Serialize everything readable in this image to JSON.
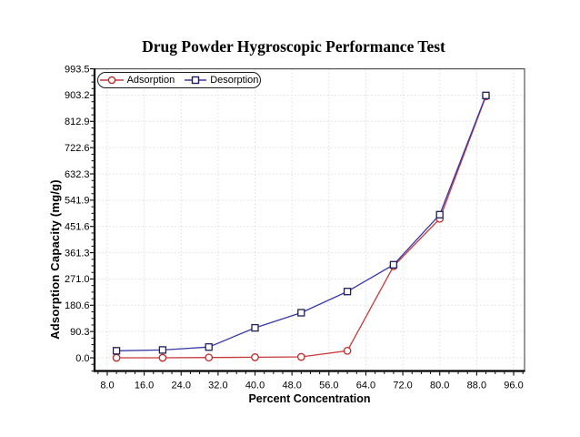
{
  "page": {
    "background": "#ffffff"
  },
  "chart_data": {
    "type": "line",
    "title": "Drug Powder Hygroscopic Performance Test",
    "xlabel": "Percent Concentration",
    "ylabel": "Adsorption Capacity (mg/g)",
    "legend_position": "top-left-inside",
    "grid": true,
    "x_range": [
      5.25,
      98.36
    ],
    "y_range": [
      -45.4,
      993.5
    ],
    "x_ticks": {
      "values": [
        8,
        16,
        24,
        32,
        40,
        48,
        56,
        64,
        72,
        80,
        88,
        96
      ],
      "labels": [
        "8.0",
        "16.0",
        "24.0",
        "32.0",
        "40.0",
        "48.0",
        "56.0",
        "64.0",
        "72.0",
        "80.0",
        "88.0",
        "96.0"
      ],
      "minor_step": 2
    },
    "y_ticks": {
      "values": [
        0,
        90.3,
        180.6,
        271.0,
        361.3,
        451.6,
        541.9,
        632.3,
        722.6,
        812.9,
        903.2,
        993.5
      ],
      "labels": [
        "0.0",
        "90.3",
        "180.6",
        "271.0",
        "361.3",
        "451.6",
        "541.9",
        "632.3",
        "722.6",
        "812.9",
        "903.2",
        "993.5"
      ],
      "minor_step": 22.575
    },
    "x": [
      10,
      20,
      30,
      40,
      50,
      60,
      70,
      80,
      90
    ],
    "series": [
      {
        "name": "Adsorption",
        "marker": "circle",
        "color": "#c83a3a",
        "marker_color": "#bf2b2b",
        "values": [
          0,
          0,
          1,
          2,
          3,
          24,
          315,
          478,
          899
        ]
      },
      {
        "name": "Desorption",
        "marker": "square",
        "color": "#3838a6",
        "marker_color": "#1f1f58",
        "values": [
          24,
          27,
          37,
          103,
          155,
          228,
          320,
          492,
          902
        ]
      }
    ],
    "colors": {
      "grid": "#dedede",
      "frame": "#555555",
      "axis": "#000000",
      "text": "#000000"
    }
  }
}
